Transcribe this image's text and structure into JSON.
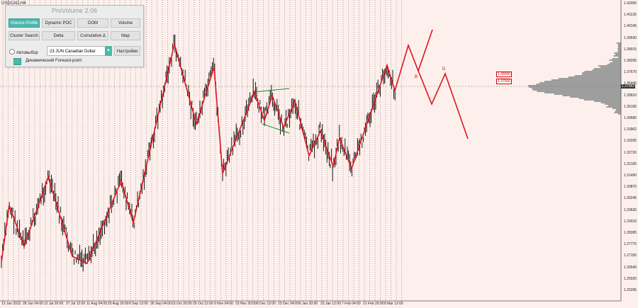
{
  "symbol_label": "USDCAD,H4",
  "panel": {
    "title": "ProVolume 2.06",
    "buttons": [
      "Volume Profile",
      "Dynamic POC",
      "DOM",
      "Volume",
      "Cluster Search",
      "Delta",
      "Cumulative Δ",
      "Map"
    ],
    "auto_label": "Автовыбор",
    "instrument": "23 JUN Canadian Dollar",
    "settings_label": "Настройки",
    "forward_label": "Динамический Forward-point"
  },
  "prices": [
    "1.42005",
    "1.41130",
    "1.40145",
    "1.39530",
    "1.38915",
    "1.38295",
    "1.37670",
    "1.36440",
    "1.35810",
    "1.35195",
    "1.34580",
    "1.33962",
    "1.33335",
    "1.32720",
    "1.32105",
    "1.31490",
    "1.30870",
    "1.30245",
    "1.29630",
    "1.29015",
    "1.28395",
    "1.27770",
    "1.27155",
    "1.26540",
    "1.25920",
    "1.25295"
  ],
  "dates": [
    "13 Jun 2022",
    "28 Jun 04:00",
    "12 Jul 20:00",
    "27 Jul 12:00",
    "11 Aug 04:00",
    "25 Aug 20:00",
    "9 Sep 12:00",
    "26 Sep 04:00",
    "10 Oct 20:00",
    "25 Oct 12:00",
    "9 Nov 04:00",
    "23 Nov 20:00",
    "8 Dec 12:00",
    "23 Dec 04:00",
    "6 Jan 20:00",
    "23 Jan 12:00",
    "7 Feb 04:00",
    "21 Feb 20:00",
    "8 Mar 12:00"
  ],
  "levels": [
    "1.38000",
    "1.37600"
  ],
  "current_price": "1.37562",
  "wave_labels": [
    "B",
    "D"
  ],
  "colors": {
    "background": "#fdf0ec",
    "candles": "#000000",
    "zigzag": "#e0141e",
    "channel": "#1a8a1a",
    "grid": "#555555"
  }
}
